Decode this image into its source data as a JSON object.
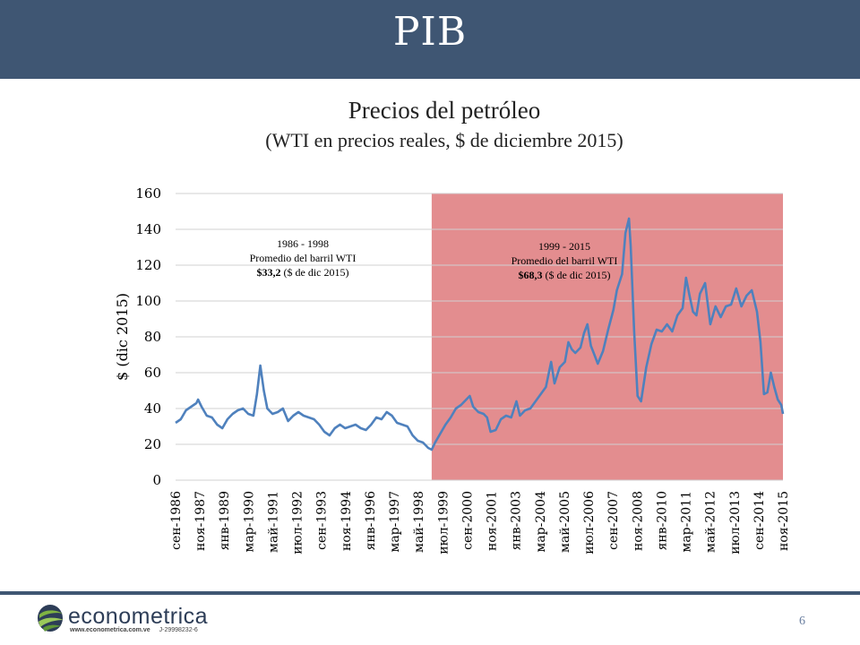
{
  "header": {
    "title": "PIB"
  },
  "chart_data": {
    "type": "line",
    "title": "Precios del petróleo",
    "subtitle": "(WTI en precios reales, $ de diciembre 2015)",
    "ylabel": "$ (dic 2015)",
    "ylim": [
      0,
      160
    ],
    "yticks": [
      0,
      20,
      40,
      60,
      80,
      100,
      120,
      140,
      160
    ],
    "grid": true,
    "x_start": "1986-09",
    "x_end": "2015-12",
    "xtick_labels": [
      "сен-1986",
      "ноя-1987",
      "янв-1989",
      "мар-1990",
      "май-1991",
      "июл-1992",
      "сен-1993",
      "ноя-1994",
      "янв-1996",
      "мар-1997",
      "май-1998",
      "июл-1999",
      "сен-2000",
      "ноя-2001",
      "янв-2003",
      "мар-2004",
      "май-2005",
      "июл-2006",
      "сен-2007",
      "ноя-2008",
      "янв-2010",
      "мар-2011",
      "май-2012",
      "июл-2013",
      "сен-2014",
      "ноя-2015"
    ],
    "series": [
      {
        "color": "#4f81bd",
        "points": [
          [
            "1986-09",
            32
          ],
          [
            "1986-12",
            34
          ],
          [
            "1987-03",
            39
          ],
          [
            "1987-06",
            41
          ],
          [
            "1987-09",
            43
          ],
          [
            "1987-10",
            45
          ],
          [
            "1987-12",
            41
          ],
          [
            "1988-03",
            36
          ],
          [
            "1988-06",
            35
          ],
          [
            "1988-09",
            31
          ],
          [
            "1988-12",
            29
          ],
          [
            "1989-03",
            34
          ],
          [
            "1989-06",
            37
          ],
          [
            "1989-09",
            39
          ],
          [
            "1989-12",
            40
          ],
          [
            "1990-03",
            37
          ],
          [
            "1990-06",
            36
          ],
          [
            "1990-08",
            48
          ],
          [
            "1990-10",
            64
          ],
          [
            "1990-12",
            50
          ],
          [
            "1991-02",
            40
          ],
          [
            "1991-05",
            37
          ],
          [
            "1991-08",
            38
          ],
          [
            "1991-11",
            40
          ],
          [
            "1992-02",
            33
          ],
          [
            "1992-05",
            36
          ],
          [
            "1992-08",
            38
          ],
          [
            "1992-11",
            36
          ],
          [
            "1993-02",
            35
          ],
          [
            "1993-05",
            34
          ],
          [
            "1993-08",
            31
          ],
          [
            "1993-11",
            27
          ],
          [
            "1994-02",
            25
          ],
          [
            "1994-05",
            29
          ],
          [
            "1994-08",
            31
          ],
          [
            "1994-11",
            29
          ],
          [
            "1995-02",
            30
          ],
          [
            "1995-05",
            31
          ],
          [
            "1995-08",
            29
          ],
          [
            "1995-11",
            28
          ],
          [
            "1996-02",
            31
          ],
          [
            "1996-05",
            35
          ],
          [
            "1996-08",
            34
          ],
          [
            "1996-11",
            38
          ],
          [
            "1997-02",
            36
          ],
          [
            "1997-05",
            32
          ],
          [
            "1997-08",
            31
          ],
          [
            "1997-11",
            30
          ],
          [
            "1998-02",
            25
          ],
          [
            "1998-05",
            22
          ],
          [
            "1998-08",
            21
          ],
          [
            "1998-11",
            18
          ],
          [
            "1999-01",
            17
          ],
          [
            "1999-03",
            21
          ],
          [
            "1999-06",
            26
          ],
          [
            "1999-09",
            31
          ],
          [
            "1999-12",
            35
          ],
          [
            "2000-03",
            40
          ],
          [
            "2000-06",
            42
          ],
          [
            "2000-09",
            45
          ],
          [
            "2000-11",
            47
          ],
          [
            "2001-01",
            41
          ],
          [
            "2001-04",
            38
          ],
          [
            "2001-07",
            37
          ],
          [
            "2001-09",
            35
          ],
          [
            "2001-11",
            27
          ],
          [
            "2002-02",
            28
          ],
          [
            "2002-05",
            34
          ],
          [
            "2002-08",
            36
          ],
          [
            "2002-11",
            35
          ],
          [
            "2003-02",
            44
          ],
          [
            "2003-04",
            36
          ],
          [
            "2003-07",
            39
          ],
          [
            "2003-10",
            40
          ],
          [
            "2004-01",
            44
          ],
          [
            "2004-04",
            48
          ],
          [
            "2004-07",
            52
          ],
          [
            "2004-10",
            66
          ],
          [
            "2004-12",
            54
          ],
          [
            "2005-03",
            63
          ],
          [
            "2005-06",
            66
          ],
          [
            "2005-08",
            77
          ],
          [
            "2005-10",
            73
          ],
          [
            "2005-12",
            71
          ],
          [
            "2006-03",
            74
          ],
          [
            "2006-05",
            82
          ],
          [
            "2006-07",
            87
          ],
          [
            "2006-09",
            75
          ],
          [
            "2006-11",
            70
          ],
          [
            "2007-01",
            65
          ],
          [
            "2007-04",
            72
          ],
          [
            "2007-07",
            84
          ],
          [
            "2007-10",
            95
          ],
          [
            "2007-12",
            106
          ],
          [
            "2008-03",
            115
          ],
          [
            "2008-05",
            138
          ],
          [
            "2008-07",
            146
          ],
          [
            "2008-08",
            131
          ],
          [
            "2008-10",
            83
          ],
          [
            "2008-12",
            47
          ],
          [
            "2009-02",
            44
          ],
          [
            "2009-05",
            63
          ],
          [
            "2009-08",
            76
          ],
          [
            "2009-11",
            84
          ],
          [
            "2010-02",
            83
          ],
          [
            "2010-05",
            87
          ],
          [
            "2010-08",
            83
          ],
          [
            "2010-11",
            92
          ],
          [
            "2011-02",
            96
          ],
          [
            "2011-04",
            113
          ],
          [
            "2011-06",
            103
          ],
          [
            "2011-08",
            94
          ],
          [
            "2011-10",
            92
          ],
          [
            "2011-12",
            104
          ],
          [
            "2012-03",
            110
          ],
          [
            "2012-06",
            87
          ],
          [
            "2012-09",
            97
          ],
          [
            "2012-12",
            91
          ],
          [
            "2013-03",
            97
          ],
          [
            "2013-06",
            98
          ],
          [
            "2013-09",
            107
          ],
          [
            "2013-12",
            97
          ],
          [
            "2014-03",
            103
          ],
          [
            "2014-06",
            106
          ],
          [
            "2014-09",
            94
          ],
          [
            "2014-11",
            77
          ],
          [
            "2015-01",
            48
          ],
          [
            "2015-03",
            49
          ],
          [
            "2015-05",
            60
          ],
          [
            "2015-07",
            52
          ],
          [
            "2015-09",
            45
          ],
          [
            "2015-11",
            42
          ],
          [
            "2015-12",
            37
          ]
        ]
      }
    ],
    "shaded_region": {
      "from": "1999-01",
      "to": "2015-12",
      "color": "#e38d8f"
    },
    "annotations": [
      {
        "line1": "1986 - 1998",
        "line2": "Promedio del barril WTI",
        "value": "$33,2",
        "unit": " ($ de dic 2015)"
      },
      {
        "line1": "1999 - 2015",
        "line2": "Promedio del barril WTI",
        "value": "$68,3",
        "unit": " ($ de dic 2015)"
      }
    ]
  },
  "footer": {
    "logo_text": "econometrica",
    "logo_url": "www.econometrica.com.ve",
    "logo_rif": "J-29998232-6",
    "page_number": "6"
  }
}
